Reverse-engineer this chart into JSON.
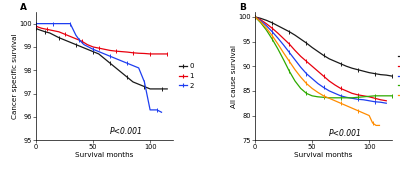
{
  "panel_A": {
    "title": "A",
    "ylabel": "Cancer specific survival",
    "xlabel": "Survival months",
    "ylim": [
      95,
      100.5
    ],
    "xlim": [
      0,
      120
    ],
    "yticks": [
      95,
      96,
      97,
      98,
      99,
      100
    ],
    "xticks": [
      0,
      50,
      100
    ],
    "pvalue": "P<0.001",
    "pvalue_x": 65,
    "pvalue_y": 95.2,
    "curves": {
      "0": {
        "color": "#1a1a1a",
        "x": [
          0,
          2,
          5,
          8,
          12,
          16,
          20,
          25,
          30,
          35,
          40,
          45,
          50,
          55,
          60,
          65,
          70,
          75,
          80,
          85,
          90,
          95,
          100,
          105,
          110,
          115
        ],
        "y": [
          99.8,
          99.75,
          99.7,
          99.65,
          99.6,
          99.5,
          99.4,
          99.3,
          99.2,
          99.1,
          99.0,
          98.9,
          98.8,
          98.7,
          98.5,
          98.3,
          98.1,
          97.9,
          97.7,
          97.5,
          97.4,
          97.3,
          97.2,
          97.2,
          97.2,
          97.2
        ]
      },
      "1": {
        "color": "#E8000E",
        "x": [
          0,
          2,
          5,
          10,
          15,
          20,
          25,
          30,
          35,
          40,
          45,
          50,
          55,
          60,
          65,
          70,
          75,
          80,
          85,
          90,
          95,
          100,
          105,
          110,
          115
        ],
        "y": [
          99.9,
          99.85,
          99.8,
          99.75,
          99.7,
          99.65,
          99.55,
          99.45,
          99.35,
          99.25,
          99.1,
          99.0,
          98.95,
          98.9,
          98.85,
          98.82,
          98.8,
          98.78,
          98.75,
          98.73,
          98.72,
          98.7,
          98.7,
          98.7,
          98.7
        ]
      },
      "2": {
        "color": "#1E3EF0",
        "x": [
          0,
          5,
          10,
          15,
          20,
          25,
          30,
          32,
          35,
          38,
          42,
          46,
          50,
          55,
          60,
          65,
          70,
          75,
          80,
          85,
          90,
          95,
          100,
          103,
          106,
          110
        ],
        "y": [
          100,
          100,
          100,
          100,
          100,
          100,
          100,
          99.8,
          99.5,
          99.3,
          99.1,
          99.0,
          98.9,
          98.8,
          98.7,
          98.6,
          98.5,
          98.4,
          98.3,
          98.2,
          98.1,
          97.5,
          96.3,
          96.3,
          96.3,
          96.2
        ]
      }
    }
  },
  "panel_B": {
    "title": "B",
    "ylabel": "All cause survival",
    "xlabel": "Survival months",
    "ylim": [
      75,
      101
    ],
    "xlim": [
      0,
      120
    ],
    "yticks": [
      75,
      80,
      85,
      90,
      95,
      100
    ],
    "xticks": [
      0,
      50,
      100
    ],
    "pvalue": "P<0.001",
    "pvalue_x": 65,
    "pvalue_y": 75.5,
    "curves": {
      "0": {
        "color": "#1a1a1a",
        "x": [
          0,
          5,
          10,
          15,
          20,
          25,
          30,
          35,
          40,
          45,
          50,
          55,
          60,
          65,
          70,
          75,
          80,
          85,
          90,
          95,
          100,
          105,
          110,
          115,
          120
        ],
        "y": [
          100,
          99.7,
          99.3,
          98.8,
          98.2,
          97.6,
          97.0,
          96.3,
          95.5,
          94.7,
          93.8,
          93.0,
          92.2,
          91.5,
          91.0,
          90.5,
          90.0,
          89.6,
          89.3,
          89.0,
          88.7,
          88.5,
          88.3,
          88.2,
          88.0
        ]
      },
      "1": {
        "color": "#E8000E",
        "x": [
          0,
          5,
          10,
          15,
          20,
          25,
          30,
          35,
          40,
          45,
          50,
          55,
          60,
          65,
          70,
          75,
          80,
          85,
          90,
          95,
          100,
          105,
          110,
          115
        ],
        "y": [
          100,
          99.4,
          98.6,
          97.7,
          96.7,
          95.6,
          94.5,
          93.2,
          92.0,
          91.0,
          90.0,
          89.0,
          88.0,
          87.0,
          86.2,
          85.5,
          85.0,
          84.5,
          84.2,
          84.0,
          83.8,
          83.5,
          83.2,
          83.0
        ]
      },
      "2": {
        "color": "#1E3EF0",
        "x": [
          0,
          5,
          10,
          15,
          20,
          25,
          30,
          35,
          40,
          45,
          50,
          55,
          60,
          65,
          70,
          75,
          80,
          85,
          90,
          95,
          100,
          105,
          110,
          115
        ],
        "y": [
          100,
          99.2,
          98.2,
          97.0,
          95.7,
          94.3,
          92.8,
          91.3,
          89.8,
          88.5,
          87.5,
          86.5,
          85.7,
          85.0,
          84.5,
          84.0,
          83.7,
          83.5,
          83.3,
          83.2,
          83.0,
          82.8,
          82.7,
          82.5
        ]
      },
      "3": {
        "color": "#2EAA00",
        "x": [
          0,
          5,
          10,
          15,
          20,
          25,
          30,
          35,
          40,
          45,
          50,
          55,
          60,
          65,
          70,
          75,
          80,
          85,
          90,
          95,
          100,
          105,
          110,
          115,
          120
        ],
        "y": [
          100,
          98.8,
          97.3,
          95.5,
          93.5,
          91.3,
          89.0,
          87.0,
          85.5,
          84.5,
          84.0,
          83.8,
          83.7,
          83.6,
          83.6,
          83.6,
          83.6,
          83.6,
          83.7,
          83.8,
          83.9,
          84.0,
          84.0,
          84.0,
          84.0
        ]
      },
      "4": {
        "color": "#FF8C00",
        "x": [
          0,
          5,
          10,
          15,
          20,
          25,
          30,
          35,
          40,
          45,
          50,
          55,
          60,
          65,
          70,
          75,
          80,
          85,
          90,
          95,
          100,
          103,
          106,
          109
        ],
        "y": [
          100,
          99.0,
          97.7,
          96.2,
          94.5,
          92.7,
          91.0,
          89.3,
          87.8,
          86.5,
          85.5,
          84.7,
          84.0,
          83.5,
          83.0,
          82.5,
          82.0,
          81.5,
          81.0,
          80.5,
          80.0,
          78.5,
          78.0,
          78.0
        ]
      }
    }
  },
  "figure_bg": "#FFFFFF",
  "tick_fontsize": 4.8,
  "label_fontsize": 5.2,
  "legend_fontsize": 5.0,
  "pvalue_fontsize": 5.5,
  "title_fontsize": 6.5,
  "linewidth": 0.9
}
